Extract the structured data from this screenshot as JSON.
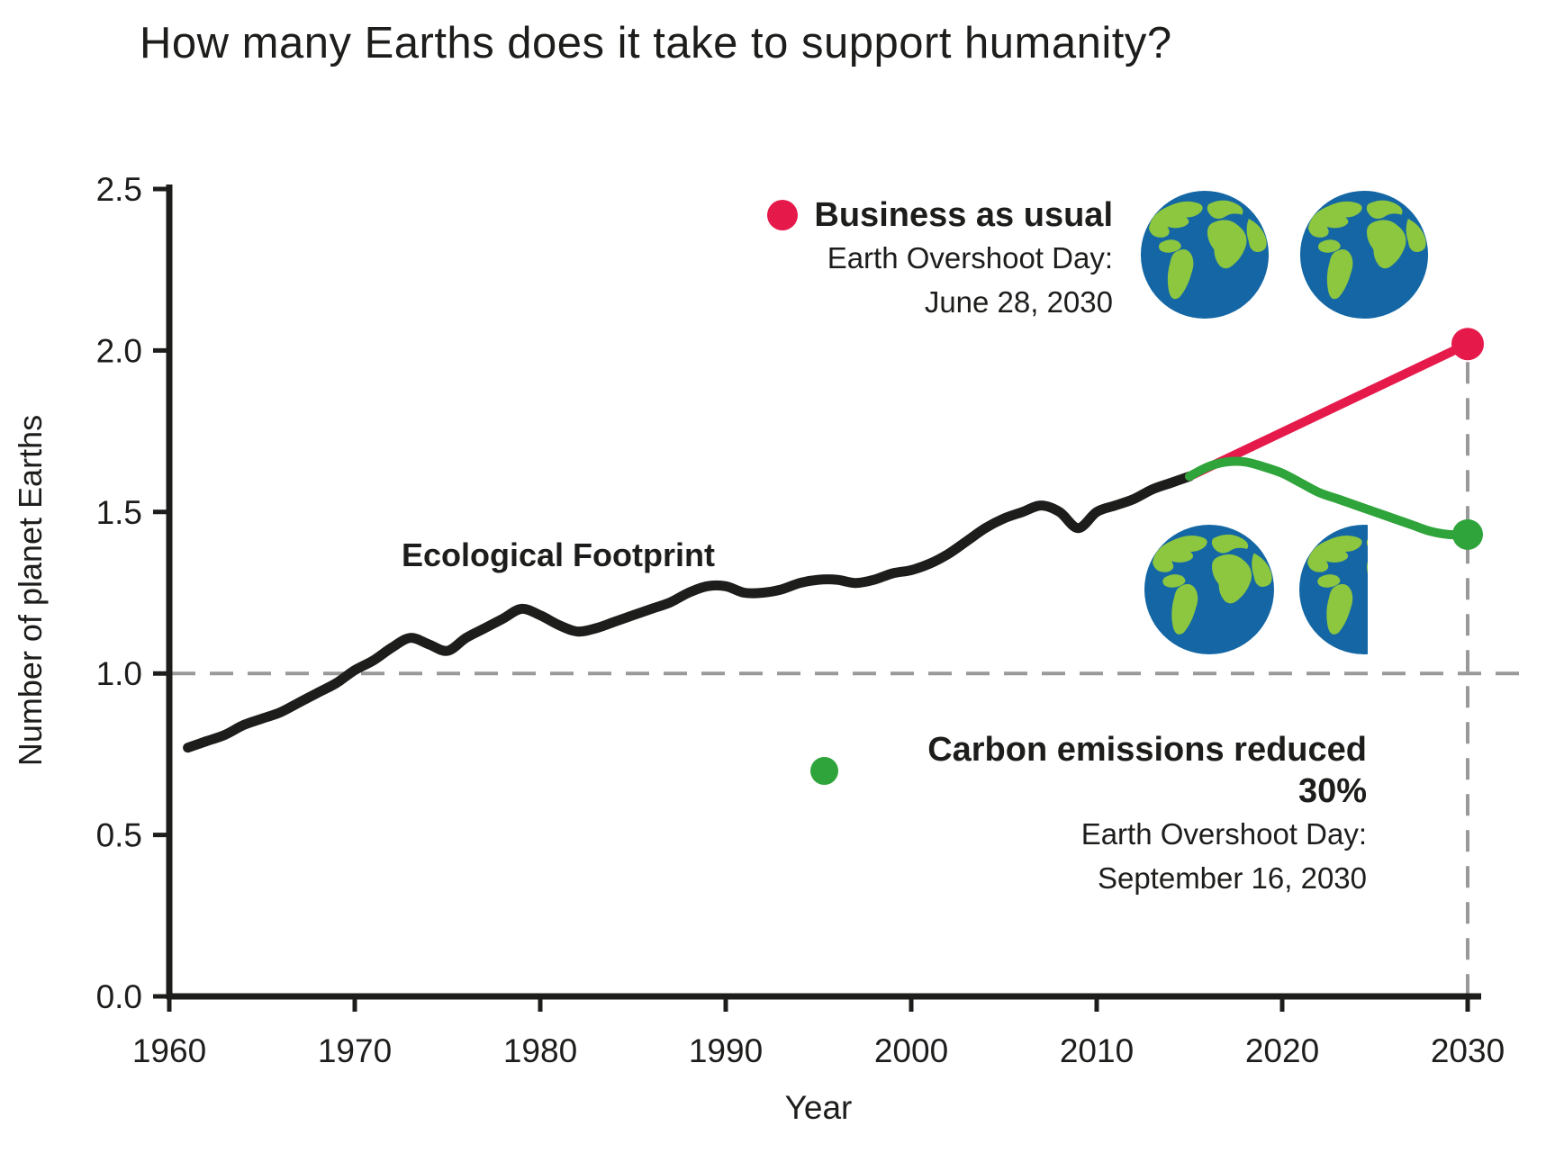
{
  "title": "How many Earths does it take to support humanity?",
  "axes": {
    "x_label": "Year",
    "y_label": "Number of planet Earths",
    "x_ticks": [
      "1960",
      "1970",
      "1980",
      "1990",
      "2000",
      "2010",
      "2020",
      "2030"
    ],
    "y_ticks": [
      "0.0",
      "0.5",
      "1.0",
      "1.5",
      "2.0",
      "2.5"
    ]
  },
  "legends": {
    "bau": {
      "label": "Business as usual",
      "subtitle": "Earth Overshoot Day:",
      "date": "June 28, 2030"
    },
    "reduced": {
      "label": "Carbon emissions reduced 30%",
      "subtitle": "Earth Overshoot Day:",
      "date": "September 16, 2030"
    }
  },
  "annotation": {
    "footprint_label": "Ecological Footprint"
  },
  "colors": {
    "black": "#1d1d1b",
    "red": "#e51a4b",
    "green": "#2ea43a",
    "gray_dash": "#999999",
    "ocean": "#1467a4",
    "land": "#8dc63f"
  },
  "chart_data": {
    "type": "line",
    "title": "How many Earths does it take to support humanity?",
    "xlabel": "Year",
    "ylabel": "Number of planet Earths",
    "xlim": [
      1960,
      2030
    ],
    "ylim": [
      0,
      2.5
    ],
    "grid": false,
    "baseline_y": 1.0,
    "projection_marker_year": 2030,
    "earth_icons": {
      "business_as_usual_earths": 2,
      "carbon_reduced_earths": 1.5
    },
    "series": [
      {
        "name": "Ecological Footprint",
        "color_key": "black",
        "line_width": 11,
        "end_dot": false,
        "x": [
          1961,
          1962,
          1963,
          1964,
          1965,
          1966,
          1967,
          1968,
          1969,
          1970,
          1971,
          1972,
          1973,
          1974,
          1975,
          1976,
          1977,
          1978,
          1979,
          1980,
          1981,
          1982,
          1983,
          1984,
          1985,
          1986,
          1987,
          1988,
          1989,
          1990,
          1991,
          1992,
          1993,
          1994,
          1995,
          1996,
          1997,
          1998,
          1999,
          2000,
          2001,
          2002,
          2003,
          2004,
          2005,
          2006,
          2007,
          2008,
          2009,
          2010,
          2011,
          2012,
          2013,
          2014,
          2015
        ],
        "values": [
          0.77,
          0.79,
          0.81,
          0.84,
          0.86,
          0.88,
          0.91,
          0.94,
          0.97,
          1.01,
          1.04,
          1.08,
          1.11,
          1.09,
          1.07,
          1.11,
          1.14,
          1.17,
          1.2,
          1.18,
          1.15,
          1.13,
          1.14,
          1.16,
          1.18,
          1.2,
          1.22,
          1.25,
          1.27,
          1.27,
          1.25,
          1.25,
          1.26,
          1.28,
          1.29,
          1.29,
          1.28,
          1.29,
          1.31,
          1.32,
          1.34,
          1.37,
          1.41,
          1.45,
          1.48,
          1.5,
          1.52,
          1.5,
          1.45,
          1.5,
          1.52,
          1.54,
          1.57,
          1.59,
          1.61
        ]
      },
      {
        "name": "Business as usual",
        "color_key": "red",
        "line_width": 10,
        "end_dot": true,
        "dot_radius": 18,
        "x": [
          2015,
          2030
        ],
        "values": [
          1.61,
          2.02
        ]
      },
      {
        "name": "Carbon emissions reduced 30%",
        "color_key": "green",
        "line_width": 10,
        "end_dot": true,
        "dot_radius": 17,
        "x": [
          2015,
          2016,
          2017,
          2018,
          2019,
          2020,
          2021,
          2022,
          2023,
          2024,
          2025,
          2026,
          2027,
          2028,
          2029,
          2030
        ],
        "values": [
          1.61,
          1.64,
          1.655,
          1.655,
          1.64,
          1.62,
          1.59,
          1.56,
          1.54,
          1.52,
          1.5,
          1.48,
          1.46,
          1.44,
          1.43,
          1.43
        ]
      }
    ]
  }
}
